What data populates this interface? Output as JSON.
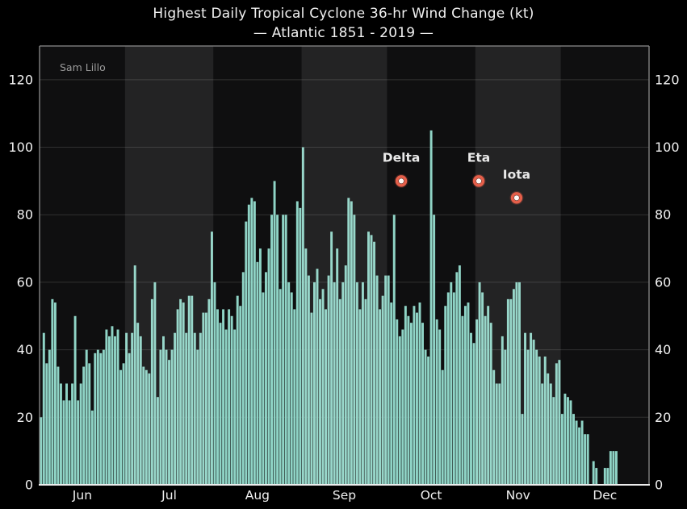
{
  "colors": {
    "background": "#000000",
    "plot_background": "#0f0f10",
    "light_band_overlay": "rgba(255,255,255,0.085)",
    "gridline": "rgba(255,255,255,0.14)",
    "bar": "#8fd4c6",
    "spine": "#8c8c8c",
    "baseline": "#ededed",
    "text": "#f1f1f1",
    "watermark_text": "#9b9b9b",
    "marker_ring": "#e55f4a",
    "marker_core": "#fff8f5",
    "marker_glow": "rgba(229,95,74,0.22)"
  },
  "chart_data": {
    "type": "bar",
    "title": "Highest Daily Tropical Cyclone 36-hr Wind Change (kt)",
    "subtitle": "— Atlantic 1851 - 2019 —",
    "watermark": "Sam Lillo",
    "ylabel": "",
    "y_unit": "kt",
    "ylim": [
      0,
      130
    ],
    "yticks": [
      0,
      20,
      40,
      60,
      80,
      100,
      120
    ],
    "grid": true,
    "legend": "none",
    "months": [
      {
        "label": "Jun",
        "days": 30,
        "band": "dark",
        "values": [
          20,
          45,
          36,
          40,
          55,
          54,
          35,
          30,
          25,
          30,
          25,
          30,
          50,
          25,
          30,
          35,
          40,
          36,
          22,
          39,
          40,
          39,
          40,
          46,
          44,
          47,
          44,
          46,
          34,
          36
        ]
      },
      {
        "label": "Jul",
        "days": 31,
        "band": "light",
        "values": [
          45,
          39,
          45,
          65,
          48,
          44,
          35,
          34,
          33,
          55,
          60,
          26,
          40,
          44,
          40,
          37,
          40,
          45,
          52,
          55,
          54,
          45,
          56,
          56,
          45,
          40,
          45,
          51,
          51,
          55,
          75
        ]
      },
      {
        "label": "Aug",
        "days": 31,
        "band": "dark",
        "values": [
          60,
          52,
          48,
          52,
          46,
          52,
          50,
          46,
          56,
          53,
          63,
          78,
          83,
          85,
          84,
          66,
          70,
          57,
          63,
          70,
          80,
          90,
          80,
          58,
          80,
          80,
          60,
          57,
          52,
          84,
          82
        ]
      },
      {
        "label": "Sep",
        "days": 30,
        "band": "light",
        "values": [
          100,
          70,
          62,
          51,
          60,
          64,
          55,
          58,
          52,
          62,
          75,
          60,
          70,
          55,
          60,
          65,
          85,
          84,
          80,
          60,
          52,
          60,
          55,
          75,
          74,
          72,
          62,
          52,
          56,
          62
        ]
      },
      {
        "label": "Oct",
        "days": 31,
        "band": "dark",
        "values": [
          62,
          54,
          80,
          49,
          44,
          46,
          53,
          50,
          48,
          53,
          51,
          54,
          48,
          40,
          38,
          105,
          80,
          49,
          46,
          34,
          53,
          57,
          60,
          57,
          63,
          65,
          50,
          53,
          54,
          45,
          42
        ]
      },
      {
        "label": "Nov",
        "days": 30,
        "band": "light",
        "values": [
          49,
          60,
          57,
          50,
          53,
          48,
          34,
          30,
          30,
          44,
          40,
          55,
          55,
          58,
          60,
          60,
          21,
          45,
          40,
          45,
          43,
          40,
          38,
          30,
          38,
          33,
          30,
          26,
          36,
          37
        ]
      },
      {
        "label": "Dec",
        "days": 31,
        "band": "dark",
        "values": [
          21,
          27,
          26,
          25,
          21,
          19,
          17,
          19,
          15,
          15,
          0,
          7,
          5,
          0,
          0,
          5,
          5,
          10,
          10,
          10,
          0,
          0,
          0,
          0,
          0,
          0,
          0,
          0,
          0,
          0,
          0
        ]
      }
    ],
    "annotations": [
      {
        "label": "Delta",
        "day_index": 127.0,
        "value": 90
      },
      {
        "label": "Eta",
        "day_index": 154.2,
        "value": 90
      },
      {
        "label": "Iota",
        "day_index": 167.5,
        "value": 85
      }
    ]
  }
}
